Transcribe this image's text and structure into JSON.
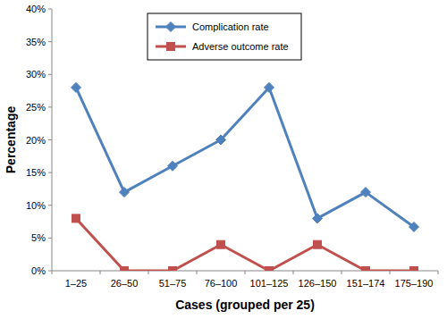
{
  "chart_data": {
    "type": "line",
    "x_label": "Cases (grouped per 25)",
    "y_label": "Percentage",
    "categories": [
      "1–25",
      "26–50",
      "51–75",
      "76–100",
      "101–125",
      "126–150",
      "151–174",
      "175–190"
    ],
    "series": [
      {
        "name": "Complication rate",
        "color": "#4f81bd",
        "marker": "diamond",
        "values": [
          28,
          12,
          16,
          20,
          28,
          8,
          12,
          6.7
        ]
      },
      {
        "name": "Adverse outcome rate",
        "color": "#c0504d",
        "marker": "square",
        "values": [
          8,
          0,
          0,
          4,
          0,
          4,
          0,
          0
        ]
      }
    ],
    "ylim": [
      0,
      40
    ],
    "yticks": [
      {
        "value": 0,
        "label": "0%"
      },
      {
        "value": 5,
        "label": "5%"
      },
      {
        "value": 10,
        "label": "10%"
      },
      {
        "value": 15,
        "label": "15%"
      },
      {
        "value": 20,
        "label": "20%"
      },
      {
        "value": 25,
        "label": "25%"
      },
      {
        "value": 30,
        "label": "30%"
      },
      {
        "value": 35,
        "label": "35%"
      },
      {
        "value": 40,
        "label": "40%"
      }
    ],
    "grid": false,
    "legend": "upper center"
  }
}
